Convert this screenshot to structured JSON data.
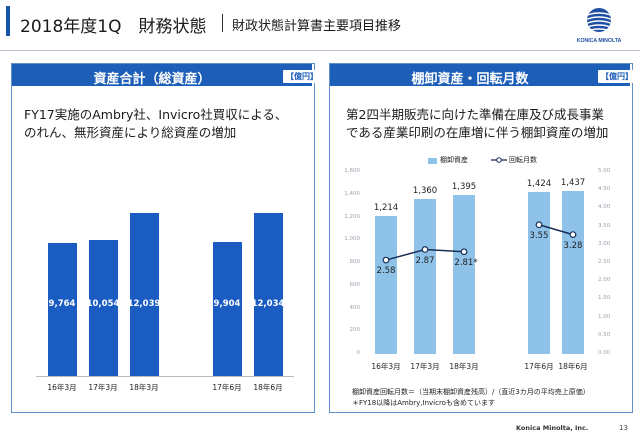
{
  "header": {
    "title": "2018年度1Q　財務状態",
    "subtitle": "財政状態計算書主要項目推移",
    "logo_text": "KONICA MINOLTA"
  },
  "left_panel": {
    "title": "資産合計（総資産）",
    "unit": "【億円】",
    "note_line1": "FY17実施のAmbry社、Invicro社買収による、",
    "note_line2": "のれん、無形資産により総資産の増加",
    "chart_data": {
      "type": "bar",
      "categories": [
        "16年3月",
        "17年3月",
        "18年3月",
        "17年6月",
        "18年6月"
      ],
      "values": [
        9764,
        10054,
        12039,
        9904,
        12034
      ],
      "value_labels": [
        "9,764",
        "10,054",
        "12,039",
        "9,904",
        "12,034"
      ],
      "ylim": [
        0,
        14000
      ],
      "grid": false,
      "color": "#1a5cc2"
    }
  },
  "right_panel": {
    "title": "棚卸資産・回転月数",
    "unit": "【億円】",
    "note_line1": "第2四半期販売に向けた準備在庫及び成長事業",
    "note_line2": "である産業印刷の在庫増に伴う棚卸資産の増加",
    "legend_inventory": "棚卸資産",
    "legend_months": "回転月数",
    "chart_data": {
      "type": "bar",
      "categories": [
        "16年3月",
        "17年3月",
        "18年3月",
        "17年6月",
        "18年6月"
      ],
      "series": [
        {
          "name": "棚卸資産",
          "values": [
            1214,
            1360,
            1395,
            1424,
            1437
          ],
          "labels": [
            "1,214",
            "1,360",
            "1,395",
            "1,424",
            "1,437"
          ],
          "color": "#8ec2e8"
        },
        {
          "name": "回転月数",
          "values": [
            2.58,
            2.87,
            2.81,
            3.55,
            3.28
          ],
          "labels": [
            "2.58",
            "2.87",
            "2.81*",
            "3.55",
            "3.28"
          ],
          "color": "#1a2e55"
        }
      ],
      "left_axis_ticks": [
        "0",
        "200",
        "400",
        "600",
        "800",
        "1,000",
        "1,200",
        "1,400",
        "1,600"
      ],
      "right_axis_ticks": [
        "0.00",
        "0.50",
        "1.00",
        "1.50",
        "2.00",
        "2.50",
        "3.00",
        "3.50",
        "4.00",
        "4.50",
        "5.00"
      ],
      "ylim": [
        0,
        1600
      ],
      "y2lim": [
        0,
        5.0
      ]
    },
    "footnote1": "棚卸資産回転月数＝（当期末棚卸資産残高）/（直近3カ月の平均売上原価）",
    "footnote2": "＊FY18以降はAmbry,Invicroも含めています"
  },
  "footer": {
    "copyright": "Konica Minolta, Inc.",
    "page_number": "13"
  }
}
